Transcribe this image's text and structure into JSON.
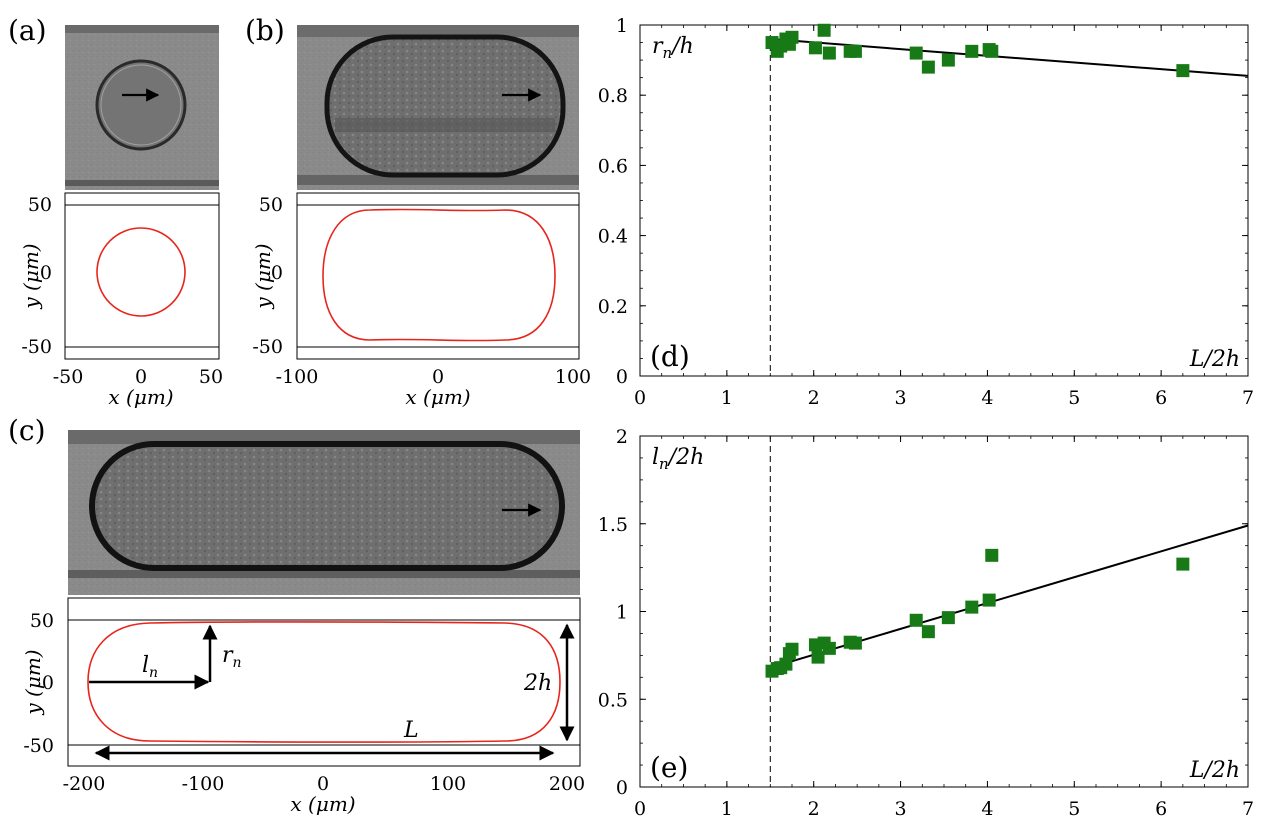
{
  "panel_labels": {
    "a": "(a)",
    "b": "(b)",
    "c": "(c)",
    "d": "(d)",
    "e": "(e)"
  },
  "shape_panels": {
    "a": {
      "xticks": [
        "-50",
        "0",
        "50"
      ],
      "yticks": [
        "50",
        "0",
        "-50"
      ],
      "xlabel": "x (μm)",
      "ylabel": "y (μm)",
      "xlim": [
        -50,
        50
      ],
      "ylim": [
        -62,
        52
      ],
      "walls": [
        50,
        -50
      ]
    },
    "b": {
      "xticks": [
        "-100",
        "0",
        "100"
      ],
      "yticks": [
        "50",
        "0",
        "-50"
      ],
      "xlabel": "x (μm)",
      "ylabel": "y (μm)",
      "xlim": [
        -100,
        100
      ],
      "ylim": [
        -62,
        52
      ],
      "walls": [
        50,
        -50
      ]
    },
    "c": {
      "xticks": [
        "-200",
        "-100",
        "0",
        "100",
        "200"
      ],
      "yticks": [
        "50",
        "0",
        "-50"
      ],
      "xlabel": "x (μm)",
      "ylabel": "y (μm)",
      "xlim": [
        -205,
        205
      ],
      "ylim": [
        -67,
        53
      ],
      "walls": [
        50,
        -50
      ],
      "annotations": {
        "ln": "l",
        "ln_sub": "n",
        "rn": "r",
        "rn_sub": "n",
        "two_h": "2h",
        "L": "L"
      }
    }
  },
  "micrograph_colors": {
    "background": "#8c8c8c",
    "droplet_edge": "#1e1e1e",
    "droplet_inner": "#6f6f6f"
  },
  "colors": {
    "droplet_outline": "#e8251c",
    "marker": "#177a17",
    "line": "#000000"
  },
  "chart_data": [
    {
      "type": "scatter",
      "panel": "(d)",
      "ylabel": "r",
      "ylabel_sub": "n",
      "ylabel_tail": "/h",
      "xlabel": "L/2h",
      "xlim": [
        0,
        7
      ],
      "ylim": [
        0,
        1
      ],
      "xticks": [
        "0",
        "1",
        "2",
        "3",
        "4",
        "5",
        "6",
        "7"
      ],
      "yticks": [
        "0",
        "0.2",
        "0.4",
        "0.6",
        "0.8",
        "1"
      ],
      "ytick_values": [
        0,
        0.2,
        0.4,
        0.6,
        0.8,
        1
      ],
      "vline_x": 1.5,
      "fit_line": [
        [
          1.5,
          0.96
        ],
        [
          7,
          0.855
        ]
      ],
      "points": [
        [
          1.52,
          0.95
        ],
        [
          1.58,
          0.925
        ],
        [
          1.62,
          0.94
        ],
        [
          1.68,
          0.96
        ],
        [
          1.72,
          0.945
        ],
        [
          1.75,
          0.965
        ],
        [
          2.02,
          0.935
        ],
        [
          2.12,
          0.985
        ],
        [
          2.18,
          0.92
        ],
        [
          2.42,
          0.925
        ],
        [
          2.48,
          0.925
        ],
        [
          3.18,
          0.92
        ],
        [
          3.32,
          0.88
        ],
        [
          3.55,
          0.9
        ],
        [
          3.82,
          0.925
        ],
        [
          4.02,
          0.93
        ],
        [
          4.05,
          0.925
        ],
        [
          6.25,
          0.87
        ]
      ]
    },
    {
      "type": "scatter",
      "panel": "(e)",
      "ylabel": "l",
      "ylabel_sub": "n",
      "ylabel_tail": "/2h",
      "xlabel": "L/2h",
      "xlim": [
        0,
        7
      ],
      "ylim": [
        0,
        2
      ],
      "xticks": [
        "0",
        "1",
        "2",
        "3",
        "4",
        "5",
        "6",
        "7"
      ],
      "yticks": [
        "0",
        "0.5",
        "1",
        "1.5",
        "2"
      ],
      "ytick_values": [
        0,
        0.5,
        1,
        1.5,
        2
      ],
      "vline_x": 1.5,
      "fit_line": [
        [
          1.5,
          0.68
        ],
        [
          7,
          1.49
        ]
      ],
      "points": [
        [
          1.52,
          0.66
        ],
        [
          1.58,
          0.675
        ],
        [
          1.62,
          0.68
        ],
        [
          1.68,
          0.7
        ],
        [
          1.72,
          0.76
        ],
        [
          1.75,
          0.785
        ],
        [
          2.02,
          0.81
        ],
        [
          2.05,
          0.74
        ],
        [
          2.12,
          0.82
        ],
        [
          2.18,
          0.79
        ],
        [
          2.42,
          0.825
        ],
        [
          2.48,
          0.82
        ],
        [
          3.18,
          0.95
        ],
        [
          3.32,
          0.885
        ],
        [
          3.55,
          0.965
        ],
        [
          3.82,
          1.025
        ],
        [
          4.02,
          1.065
        ],
        [
          4.05,
          1.32
        ],
        [
          6.25,
          1.27
        ]
      ]
    }
  ]
}
